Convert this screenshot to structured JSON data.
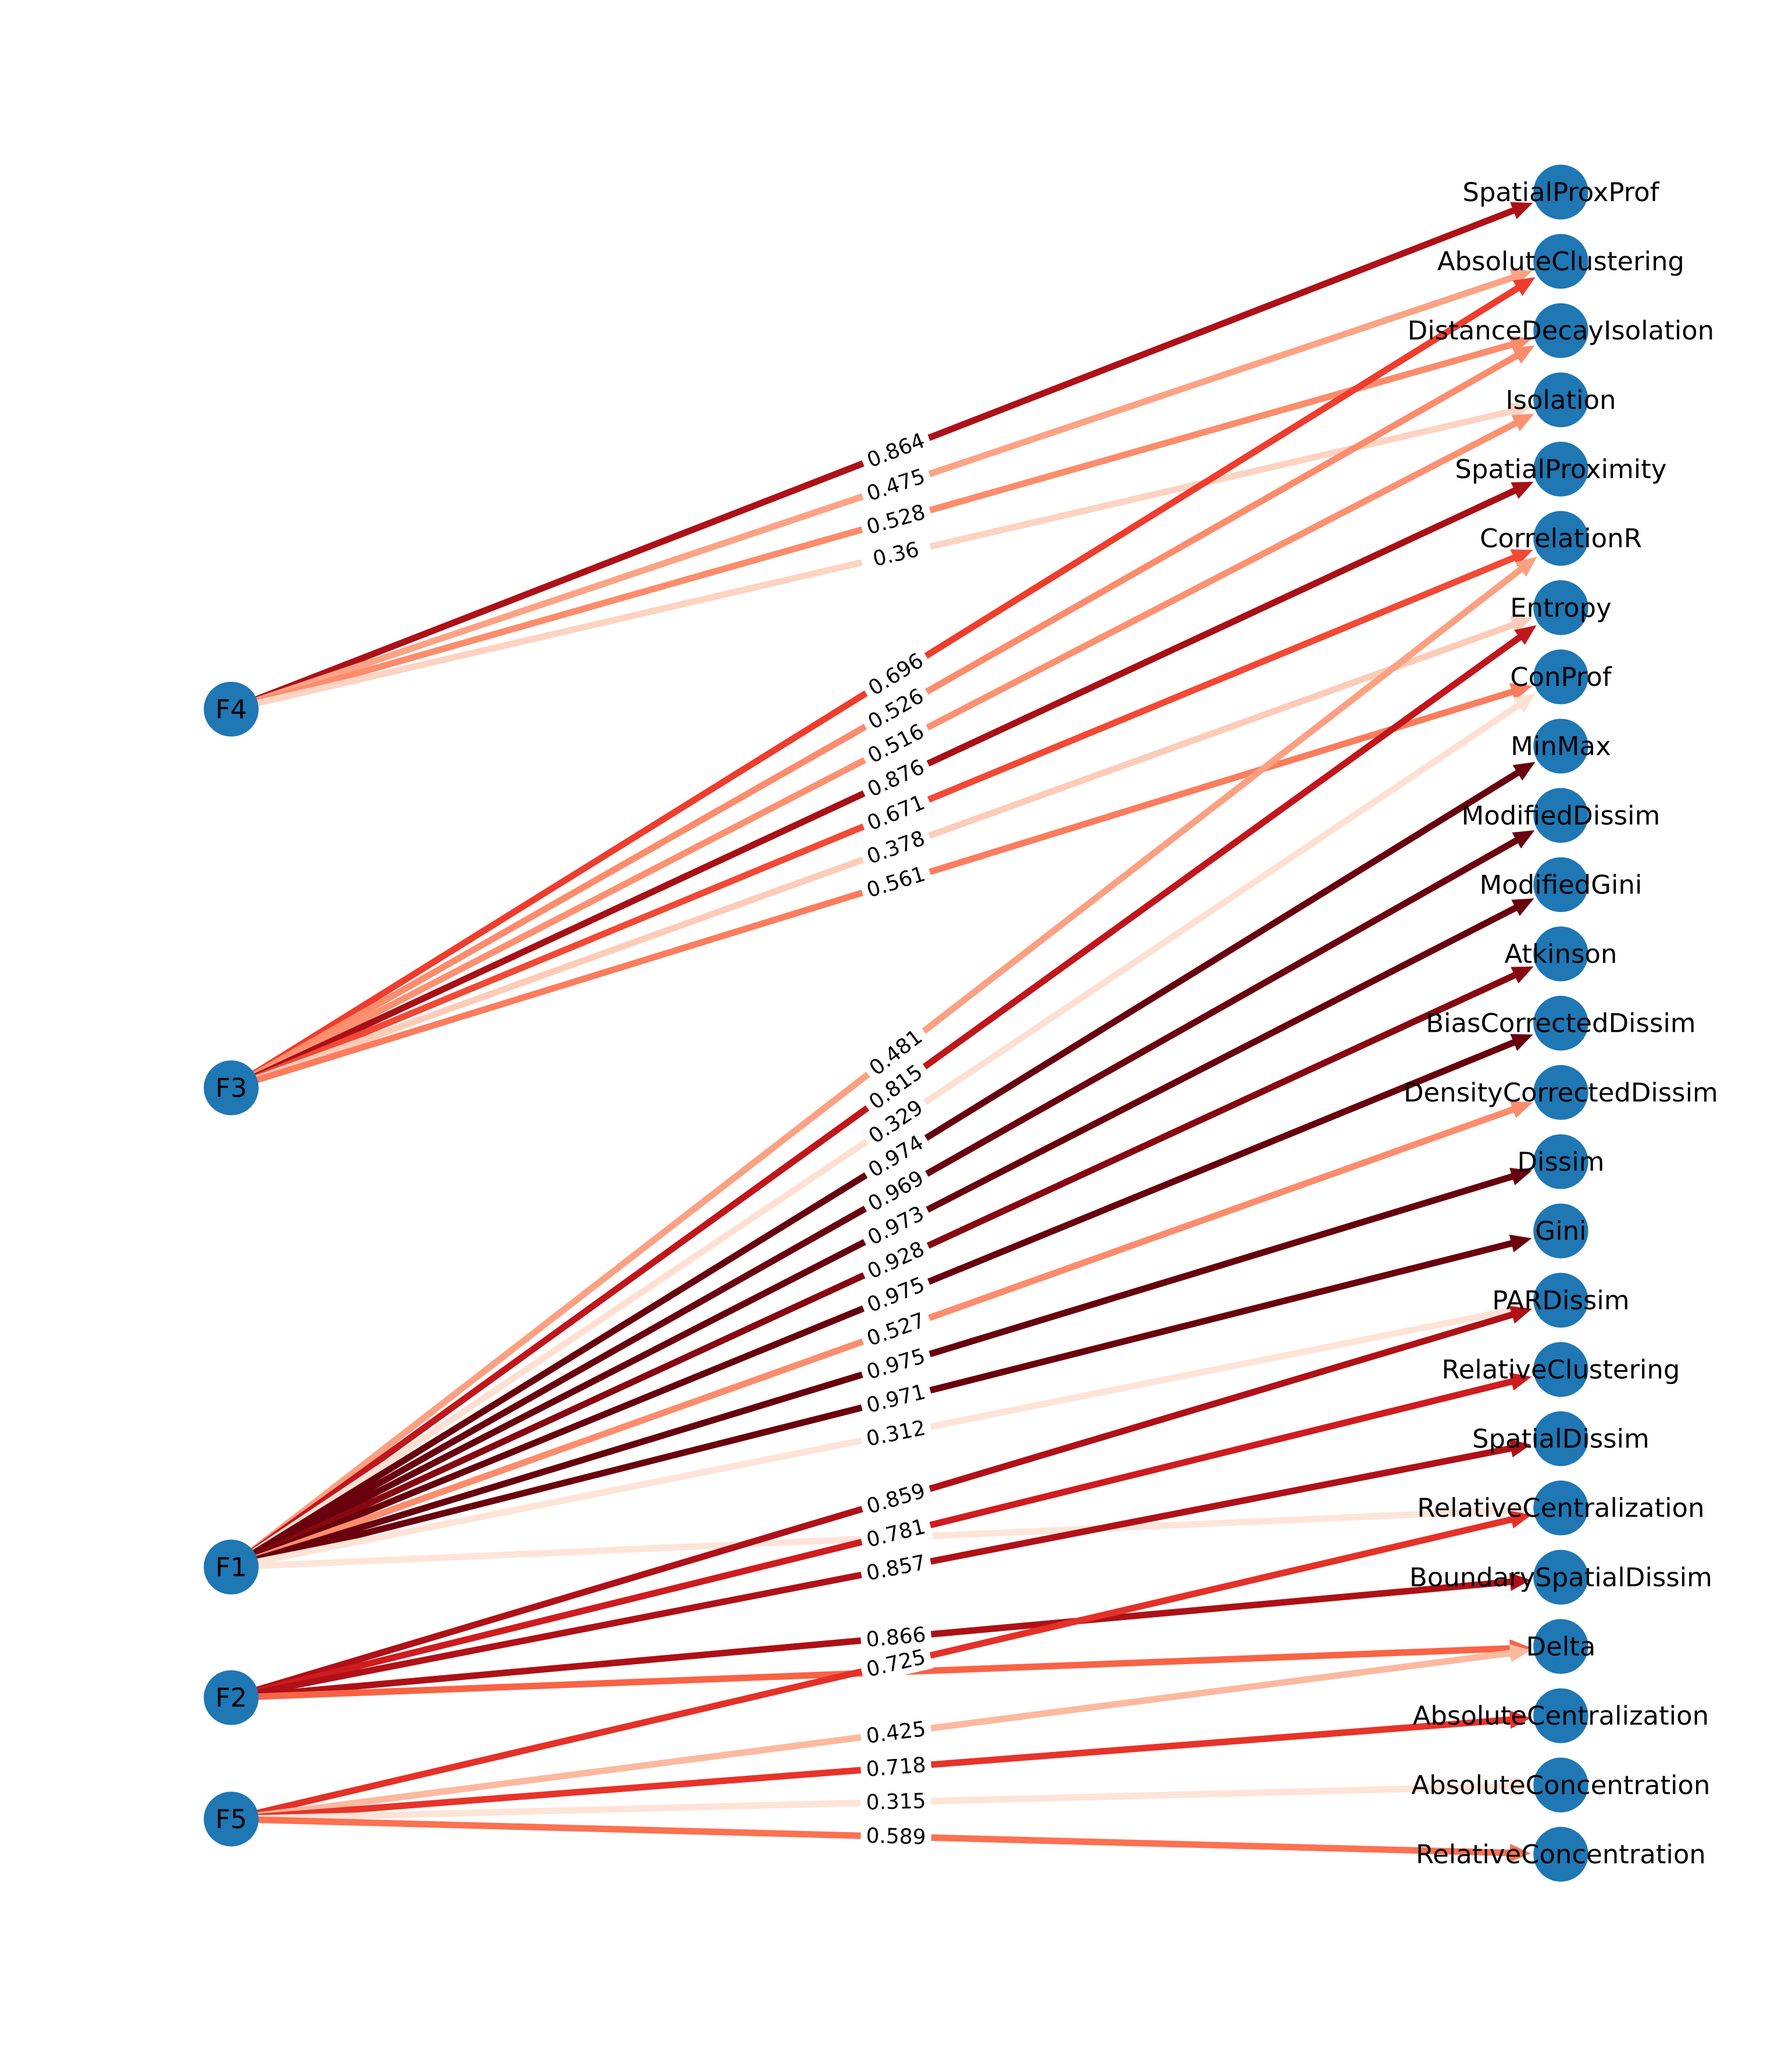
{
  "diagram": {
    "type": "directed-graph",
    "colormap": "Reds",
    "node_color": "#1f77b4",
    "sources": [
      "F4",
      "F3",
      "F1",
      "F2",
      "F5"
    ],
    "targets": [
      "SpatialProxProf",
      "AbsoluteClustering",
      "DistanceDecayIsolation",
      "Isolation",
      "SpatialProximity",
      "CorrelationR",
      "Entropy",
      "ConProf",
      "MinMax",
      "ModifiedDissim",
      "ModifiedGini",
      "Atkinson",
      "BiasCorrectedDissim",
      "DensityCorrectedDissim",
      "Dissim",
      "Gini",
      "PARDissim",
      "RelativeClustering",
      "SpatialDissim",
      "RelativeCentralization",
      "BoundarySpatialDissim",
      "Delta",
      "AbsoluteCentralization",
      "AbsoluteConcentration",
      "RelativeConcentration"
    ],
    "edges": [
      {
        "from": "F4",
        "to": "SpatialProxProf",
        "label": "0.864",
        "weight": 0.864
      },
      {
        "from": "F4",
        "to": "AbsoluteClustering",
        "label": "0.475",
        "weight": 0.475
      },
      {
        "from": "F4",
        "to": "DistanceDecayIsolation",
        "label": "0.528",
        "weight": 0.528
      },
      {
        "from": "F4",
        "to": "Isolation",
        "label": "0.36",
        "weight": 0.36
      },
      {
        "from": "F3",
        "to": "AbsoluteClustering",
        "label": "0.696",
        "weight": 0.696
      },
      {
        "from": "F3",
        "to": "DistanceDecayIsolation",
        "label": "0.526",
        "weight": 0.526
      },
      {
        "from": "F3",
        "to": "Isolation",
        "label": "0.516",
        "weight": 0.516
      },
      {
        "from": "F3",
        "to": "SpatialProximity",
        "label": "0.876",
        "weight": 0.876
      },
      {
        "from": "F3",
        "to": "CorrelationR",
        "label": "0.671",
        "weight": 0.671
      },
      {
        "from": "F3",
        "to": "Entropy",
        "label": "0.378",
        "weight": 0.378
      },
      {
        "from": "F3",
        "to": "ConProf",
        "label": "0.561",
        "weight": 0.561
      },
      {
        "from": "F1",
        "to": "CorrelationR",
        "label": "0.481",
        "weight": 0.481
      },
      {
        "from": "F1",
        "to": "Entropy",
        "label": "0.815",
        "weight": 0.815
      },
      {
        "from": "F1",
        "to": "ConProf",
        "label": "0.329",
        "weight": 0.329
      },
      {
        "from": "F1",
        "to": "MinMax",
        "label": "0.974",
        "weight": 0.974
      },
      {
        "from": "F1",
        "to": "ModifiedDissim",
        "label": "0.969",
        "weight": 0.969
      },
      {
        "from": "F1",
        "to": "ModifiedGini",
        "label": "0.973",
        "weight": 0.973
      },
      {
        "from": "F1",
        "to": "Atkinson",
        "label": "0.928",
        "weight": 0.928
      },
      {
        "from": "F1",
        "to": "BiasCorrectedDissim",
        "label": "0.975",
        "weight": 0.975
      },
      {
        "from": "F1",
        "to": "DensityCorrectedDissim",
        "label": "0.527",
        "weight": 0.527
      },
      {
        "from": "F1",
        "to": "Dissim",
        "label": "0.975",
        "weight": 0.975
      },
      {
        "from": "F1",
        "to": "Gini",
        "label": "0.971",
        "weight": 0.971
      },
      {
        "from": "F1",
        "to": "PARDissim",
        "label": "0.312",
        "weight": 0.312
      },
      {
        "from": "F1",
        "to": "RelativeCentralization",
        "label": "",
        "weight": 0.31
      },
      {
        "from": "F2",
        "to": "PARDissim",
        "label": "0.859",
        "weight": 0.859
      },
      {
        "from": "F2",
        "to": "RelativeClustering",
        "label": "0.781",
        "weight": 0.781
      },
      {
        "from": "F2",
        "to": "SpatialDissim",
        "label": "0.857",
        "weight": 0.857
      },
      {
        "from": "F2",
        "to": "BoundarySpatialDissim",
        "label": "0.866",
        "weight": 0.866
      },
      {
        "from": "F2",
        "to": "Delta",
        "label": "",
        "weight": 0.62
      },
      {
        "from": "F5",
        "to": "RelativeCentralization",
        "label": "0.725",
        "weight": 0.725
      },
      {
        "from": "F5",
        "to": "Delta",
        "label": "0.425",
        "weight": 0.425
      },
      {
        "from": "F5",
        "to": "AbsoluteCentralization",
        "label": "0.718",
        "weight": 0.718
      },
      {
        "from": "F5",
        "to": "AbsoluteConcentration",
        "label": "0.315",
        "weight": 0.315
      },
      {
        "from": "F5",
        "to": "RelativeConcentration",
        "label": "0.589",
        "weight": 0.589
      }
    ]
  }
}
